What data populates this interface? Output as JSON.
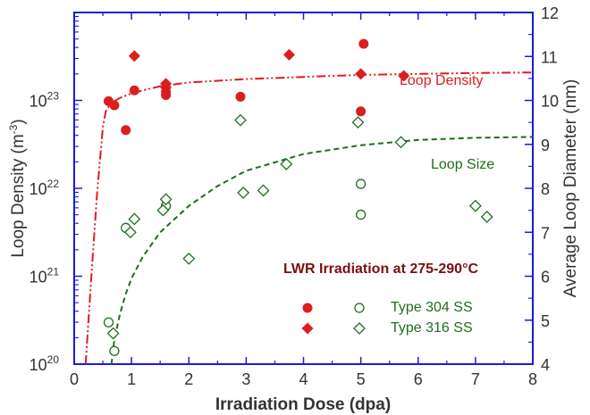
{
  "chart_data": {
    "type": "scatter",
    "xlabel": "Irradiation Dose (dpa)",
    "ylabel_left": "Loop Density (m",
    "ylabel_left_sup": "-3",
    "ylabel_left_end": ")",
    "ylabel_right": "Average Loop Diameter (nm)",
    "xlim": [
      0,
      8
    ],
    "ylim_left": [
      1e+20,
      1e+24
    ],
    "ylim_left_scale": "log",
    "ylim_right": [
      4,
      12
    ],
    "xticks": [
      0,
      1,
      2,
      3,
      4,
      5,
      6,
      7,
      8
    ],
    "yticks_left": [
      {
        "value": 1e+20,
        "base": "10",
        "exp": "20"
      },
      {
        "value": 1e+21,
        "base": "10",
        "exp": "21"
      },
      {
        "value": 1e+22,
        "base": "10",
        "exp": "22"
      },
      {
        "value": 1e+23,
        "base": "10",
        "exp": "23"
      }
    ],
    "yticks_right": [
      4,
      5,
      6,
      7,
      8,
      9,
      10,
      11,
      12
    ],
    "annotations": {
      "loop_density": "Loop Density",
      "loop_size": "Loop Size",
      "condition": "LWR Irradiation at 275-290°C"
    },
    "legend": {
      "placement": "bottom-right",
      "entries": [
        {
          "label": "Type 304 SS",
          "density_marker": "filled-circle",
          "size_marker": "open-circle"
        },
        {
          "label": "Type 316 SS",
          "density_marker": "filled-diamond",
          "size_marker": "open-diamond"
        }
      ]
    },
    "colors": {
      "axis": "#1a1adc",
      "density": "#dc1e1e",
      "size": "#1e6e1e",
      "condition_text": "#7a1010"
    },
    "series": [
      {
        "name": "Type 304 SS",
        "axis": "left",
        "marker": "filled-circle",
        "x": [
          0.6,
          0.7,
          0.9,
          1.05,
          1.6,
          1.6,
          2.9,
          5.0,
          5.05
        ],
        "y": [
          9.8e+22,
          8.8e+22,
          4.6e+22,
          1.3e+23,
          1.15e+23,
          1.25e+23,
          1.1e+23,
          7.5e+22,
          4.4e+23
        ]
      },
      {
        "name": "Type 316 SS",
        "axis": "left",
        "marker": "filled-diamond",
        "x": [
          1.05,
          1.6,
          1.6,
          3.75,
          5.0,
          5.75
        ],
        "y": [
          3.2e+23,
          1.55e+23,
          1.4e+23,
          3.3e+23,
          2e+23,
          1.9e+23
        ]
      },
      {
        "name": "Type 304 SS",
        "axis": "right",
        "marker": "open-circle",
        "x": [
          0.6,
          0.7,
          0.9,
          1.6,
          5.0,
          5.0
        ],
        "y": [
          4.95,
          4.3,
          7.1,
          7.6,
          7.4,
          8.1
        ]
      },
      {
        "name": "Type 316 SS",
        "axis": "right",
        "marker": "open-diamond",
        "x": [
          0.68,
          0.98,
          1.05,
          1.55,
          1.6,
          2.0,
          2.9,
          2.95,
          3.3,
          3.7,
          4.95,
          5.7,
          7.0,
          7.2
        ],
        "y": [
          4.7,
          7.0,
          7.3,
          7.5,
          7.75,
          6.4,
          9.55,
          7.9,
          7.95,
          8.55,
          9.5,
          9.05,
          7.6,
          7.35
        ]
      }
    ],
    "fits": [
      {
        "name": "Loop Density",
        "axis": "left",
        "style": "dash-dot-dot",
        "x": [
          0.2,
          0.3,
          0.4,
          0.5,
          0.55,
          0.6,
          0.7,
          0.8,
          1.0,
          1.2,
          1.5,
          2.0,
          3.0,
          4.0,
          5.0,
          6.0,
          7.0,
          8.0
        ],
        "y": [
          1e+20,
          1e+21,
          9e+21,
          5e+22,
          7.5e+22,
          8.5e+22,
          9.8e+22,
          1.07e+23,
          1.2e+23,
          1.3e+23,
          1.45e+23,
          1.6e+23,
          1.75e+23,
          1.85e+23,
          1.95e+23,
          2e+23,
          2.05e+23,
          2.08e+23
        ]
      },
      {
        "name": "Loop Size",
        "axis": "right",
        "style": "dashed",
        "x": [
          0.65,
          0.7,
          0.8,
          0.9,
          1.0,
          1.2,
          1.5,
          2.0,
          2.5,
          3.0,
          4.0,
          5.0,
          6.0,
          7.0,
          8.0
        ],
        "y": [
          4.0,
          4.55,
          5.15,
          5.6,
          5.95,
          6.45,
          7.0,
          7.6,
          8.05,
          8.4,
          8.78,
          8.98,
          9.1,
          9.15,
          9.17
        ]
      }
    ]
  }
}
